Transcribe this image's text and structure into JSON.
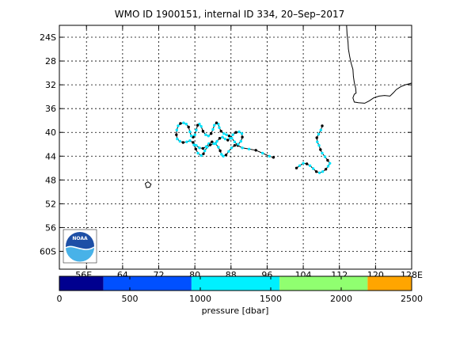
{
  "chart_data": {
    "type": "scatter",
    "title": "WMO ID 1900151, internal ID 334, 20–Sep–2017",
    "xlim": [
      50,
      128
    ],
    "ylim": [
      -63,
      -22
    ],
    "x_ticks": [
      {
        "value": 56,
        "label": "56E"
      },
      {
        "value": 64,
        "label": "64"
      },
      {
        "value": 72,
        "label": "72"
      },
      {
        "value": 80,
        "label": "80"
      },
      {
        "value": 88,
        "label": "88"
      },
      {
        "value": 96,
        "label": "96"
      },
      {
        "value": 104,
        "label": "104"
      },
      {
        "value": 112,
        "label": "112"
      },
      {
        "value": 120,
        "label": "120"
      },
      {
        "value": 128,
        "label": "128E"
      }
    ],
    "y_ticks": [
      {
        "value": -24,
        "label": "24S"
      },
      {
        "value": -28,
        "label": "28"
      },
      {
        "value": -32,
        "label": "32"
      },
      {
        "value": -36,
        "label": "36"
      },
      {
        "value": -40,
        "label": "40"
      },
      {
        "value": -44,
        "label": "44"
      },
      {
        "value": -48,
        "label": "48"
      },
      {
        "value": -52,
        "label": "52"
      },
      {
        "value": -56,
        "label": "56"
      },
      {
        "value": -60,
        "label": "60S"
      }
    ],
    "grid": true,
    "track_west": [
      [
        97.4,
        -44.2
      ],
      [
        96.5,
        -44.0
      ],
      [
        95.0,
        -43.5
      ],
      [
        93.5,
        -43.0
      ],
      [
        92.0,
        -42.8
      ],
      [
        90.5,
        -42.6
      ],
      [
        89.5,
        -42.2
      ],
      [
        88.8,
        -41.6
      ],
      [
        88.2,
        -41.0
      ],
      [
        87.6,
        -40.6
      ],
      [
        87.0,
        -40.4
      ],
      [
        86.4,
        -40.2
      ],
      [
        85.8,
        -39.8
      ],
      [
        85.4,
        -39.2
      ],
      [
        85.2,
        -38.6
      ],
      [
        84.8,
        -38.4
      ],
      [
        84.3,
        -38.8
      ],
      [
        84.0,
        -39.5
      ],
      [
        83.6,
        -40.2
      ],
      [
        83.0,
        -40.6
      ],
      [
        82.4,
        -40.4
      ],
      [
        81.8,
        -39.8
      ],
      [
        81.4,
        -39.0
      ],
      [
        81.0,
        -38.6
      ],
      [
        80.6,
        -38.8
      ],
      [
        80.3,
        -39.6
      ],
      [
        80.0,
        -40.4
      ],
      [
        79.6,
        -40.8
      ],
      [
        79.2,
        -40.6
      ],
      [
        78.9,
        -39.9
      ],
      [
        78.6,
        -39.1
      ],
      [
        78.1,
        -38.6
      ],
      [
        77.5,
        -38.4
      ],
      [
        76.8,
        -38.5
      ],
      [
        76.3,
        -38.9
      ],
      [
        76.0,
        -39.6
      ],
      [
        75.9,
        -40.4
      ],
      [
        76.1,
        -41.1
      ],
      [
        76.7,
        -41.5
      ],
      [
        77.4,
        -41.7
      ],
      [
        78.2,
        -41.6
      ],
      [
        78.9,
        -41.4
      ],
      [
        79.6,
        -41.7
      ],
      [
        80.3,
        -42.2
      ],
      [
        81.0,
        -42.6
      ],
      [
        81.8,
        -42.7
      ],
      [
        82.5,
        -42.4
      ],
      [
        83.1,
        -41.9
      ],
      [
        83.8,
        -41.6
      ],
      [
        84.6,
        -41.9
      ],
      [
        85.2,
        -42.5
      ],
      [
        85.6,
        -43.1
      ],
      [
        85.9,
        -43.7
      ],
      [
        86.3,
        -44.0
      ],
      [
        86.9,
        -43.8
      ],
      [
        87.5,
        -43.2
      ],
      [
        88.1,
        -42.6
      ],
      [
        88.8,
        -42.2
      ],
      [
        89.6,
        -42.0
      ],
      [
        90.2,
        -41.5
      ],
      [
        90.5,
        -40.8
      ],
      [
        90.4,
        -40.2
      ],
      [
        89.8,
        -39.9
      ],
      [
        89.1,
        -40.0
      ],
      [
        88.4,
        -40.4
      ],
      [
        87.8,
        -41.0
      ],
      [
        87.3,
        -41.3
      ],
      [
        86.7,
        -41.1
      ],
      [
        86.1,
        -40.8
      ],
      [
        85.5,
        -41.0
      ],
      [
        84.9,
        -41.5
      ],
      [
        84.2,
        -41.9
      ],
      [
        83.4,
        -42.1
      ],
      [
        82.7,
        -42.5
      ],
      [
        82.2,
        -43.1
      ],
      [
        81.9,
        -43.6
      ],
      [
        81.4,
        -43.9
      ],
      [
        80.7,
        -43.5
      ],
      [
        80.2,
        -42.8
      ],
      [
        79.8,
        -42.1
      ]
    ],
    "track_east": [
      [
        108.2,
        -38.9
      ],
      [
        107.9,
        -39.6
      ],
      [
        107.4,
        -40.3
      ],
      [
        107.0,
        -40.9
      ],
      [
        107.1,
        -41.6
      ],
      [
        107.5,
        -42.2
      ],
      [
        107.8,
        -42.9
      ],
      [
        108.2,
        -43.5
      ],
      [
        108.8,
        -44.1
      ],
      [
        109.4,
        -44.7
      ],
      [
        109.9,
        -45.2
      ],
      [
        109.5,
        -45.7
      ],
      [
        109.0,
        -46.2
      ],
      [
        108.3,
        -46.6
      ],
      [
        107.6,
        -46.8
      ],
      [
        106.9,
        -46.6
      ],
      [
        106.2,
        -46.1
      ],
      [
        105.5,
        -45.6
      ],
      [
        104.8,
        -45.3
      ],
      [
        104.0,
        -45.2
      ],
      [
        103.2,
        -45.6
      ],
      [
        102.5,
        -46.0
      ]
    ],
    "coastline": [
      [
        113.6,
        -22.0
      ],
      [
        113.7,
        -23.5
      ],
      [
        113.9,
        -24.8
      ],
      [
        114.0,
        -26.0
      ],
      [
        114.3,
        -27.3
      ],
      [
        114.6,
        -28.4
      ],
      [
        115.0,
        -29.4
      ],
      [
        115.1,
        -30.6
      ],
      [
        115.3,
        -31.6
      ],
      [
        115.6,
        -32.6
      ],
      [
        115.7,
        -33.4
      ],
      [
        115.3,
        -33.6
      ],
      [
        115.0,
        -34.2
      ],
      [
        115.3,
        -34.9
      ],
      [
        116.2,
        -35.0
      ],
      [
        117.6,
        -35.1
      ],
      [
        118.6,
        -34.7
      ],
      [
        119.6,
        -34.2
      ],
      [
        120.8,
        -33.9
      ],
      [
        122.0,
        -33.8
      ],
      [
        123.2,
        -33.9
      ],
      [
        124.0,
        -33.3
      ],
      [
        124.6,
        -32.8
      ],
      [
        125.6,
        -32.3
      ],
      [
        126.6,
        -32.0
      ],
      [
        127.6,
        -31.8
      ],
      [
        128.0,
        -31.7
      ]
    ],
    "island": [
      [
        69.0,
        -48.6
      ],
      [
        69.6,
        -48.3
      ],
      [
        70.3,
        -48.7
      ],
      [
        70.0,
        -49.2
      ],
      [
        69.3,
        -49.3
      ],
      [
        69.0,
        -48.6
      ]
    ],
    "colorbar": {
      "label": "pressure [dbar]",
      "min": 0,
      "max": 2500,
      "ticks": [
        {
          "value": 0,
          "label": "0"
        },
        {
          "value": 500,
          "label": "500"
        },
        {
          "value": 1000,
          "label": "1000"
        },
        {
          "value": 1500,
          "label": "1500"
        },
        {
          "value": 2000,
          "label": "2000"
        },
        {
          "value": 2500,
          "label": "2500"
        }
      ],
      "bands": [
        {
          "from": 0,
          "to": 312.5,
          "color": "#00008f"
        },
        {
          "from": 312.5,
          "to": 937.5,
          "color": "#0050ff"
        },
        {
          "from": 937.5,
          "to": 1562.5,
          "color": "#00f0ff"
        },
        {
          "from": 1562.5,
          "to": 2187.5,
          "color": "#90ff70"
        },
        {
          "from": 2187.5,
          "to": 2500,
          "color": "#ffa500"
        }
      ]
    },
    "colors": {
      "track_line": "#000000",
      "marker_shallow": "#000000",
      "marker_deep": "#00e5ff"
    }
  },
  "logo": {
    "text": "NOAA"
  }
}
